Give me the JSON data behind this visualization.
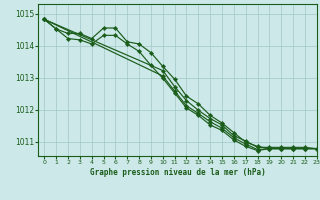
{
  "title": "Graphe pression niveau de la mer (hPa)",
  "bg_color": "#cce8e8",
  "grid_color": "#aacccc",
  "line_color": "#1a5c1a",
  "xlim": [
    -0.5,
    23
  ],
  "ylim": [
    1010.55,
    1015.3
  ],
  "yticks": [
    1011,
    1012,
    1013,
    1014,
    1015
  ],
  "xticks": [
    0,
    1,
    2,
    3,
    4,
    5,
    6,
    7,
    8,
    9,
    10,
    11,
    12,
    13,
    14,
    15,
    16,
    17,
    18,
    19,
    20,
    21,
    22,
    23
  ],
  "series_marked": [
    {
      "x": [
        0,
        1,
        2,
        3,
        4,
        5,
        6,
        7,
        8,
        9,
        10,
        11,
        12,
        13,
        14,
        15,
        16,
        17,
        18,
        19,
        20,
        21,
        22,
        23
      ],
      "y": [
        1014.82,
        1014.52,
        1014.22,
        1014.18,
        1014.05,
        1014.32,
        1014.32,
        1014.05,
        1013.82,
        1013.38,
        1012.98,
        1012.52,
        1012.05,
        1011.82,
        1011.52,
        1011.35,
        1011.05,
        1010.85,
        1010.72,
        1010.78,
        1010.78,
        1010.78,
        1010.78,
        1010.78
      ]
    },
    {
      "x": [
        0,
        1,
        2,
        3,
        4,
        5,
        6,
        7,
        8,
        9,
        10,
        11,
        12,
        13,
        14,
        15,
        16,
        17,
        18,
        19,
        20,
        21,
        22,
        23
      ],
      "y": [
        1014.82,
        1014.52,
        1014.38,
        1014.38,
        1014.22,
        1014.55,
        1014.55,
        1014.12,
        1014.05,
        1013.78,
        1013.35,
        1012.95,
        1012.42,
        1012.18,
        1011.82,
        1011.58,
        1011.28,
        1010.98,
        1010.85,
        1010.78,
        1010.78,
        1010.78,
        1010.78,
        1010.78
      ]
    }
  ],
  "series_straight": [
    {
      "x": [
        0,
        10,
        11,
        12,
        13,
        14,
        15,
        16,
        17,
        18,
        19,
        20,
        21,
        22,
        23
      ],
      "y": [
        1014.82,
        1013.05,
        1012.58,
        1012.12,
        1011.88,
        1011.62,
        1011.42,
        1011.12,
        1010.92,
        1010.75,
        1010.78,
        1010.78,
        1010.78,
        1010.78,
        1010.78
      ]
    },
    {
      "x": [
        0,
        10,
        11,
        12,
        13,
        14,
        15,
        16,
        17,
        18,
        19,
        20,
        21,
        22,
        23
      ],
      "y": [
        1014.82,
        1013.22,
        1012.72,
        1012.28,
        1011.98,
        1011.72,
        1011.52,
        1011.18,
        1011.02,
        1010.82,
        1010.82,
        1010.82,
        1010.82,
        1010.82,
        1010.78
      ]
    }
  ]
}
